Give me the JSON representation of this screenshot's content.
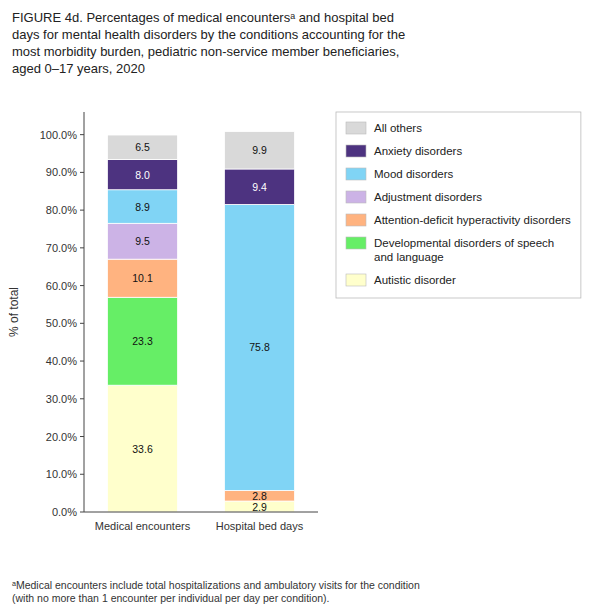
{
  "chart_data": {
    "type": "bar",
    "stacked": true,
    "data_labels": true,
    "grid": false,
    "legend": "right",
    "title": "FIGURE 4d. Percentages of medical encountersᵃ and hospital bed\ndays for mental health disorders by the conditions accounting for the\nmost morbidity burden, pediatric non-service member beneficiaries,\naged 0–17 years, 2020",
    "footnote": "ᵃMedical encounters include total hospitalizations and ambulatory visits for the condition\n(with no more than 1 encounter per individual per day per condition).",
    "y_label": "% of total",
    "categories": [
      "Medical encounters",
      "Hospital bed days"
    ],
    "series": [
      {
        "name": "Autistic disorder",
        "color": "#ffffcc",
        "values": [
          33.6,
          2.9
        ]
      },
      {
        "name": "Developmental disorders of speech and language",
        "color": "#66ee66",
        "values": [
          23.3,
          0.0
        ]
      },
      {
        "name": "Attention-deficit hyperactivity disorders",
        "color": "#ffb380",
        "values": [
          10.1,
          2.8
        ]
      },
      {
        "name": "Adjustment disorders",
        "color": "#ccb3e6",
        "values": [
          9.5,
          0.0
        ]
      },
      {
        "name": "Mood disorders",
        "color": "#80d4f5",
        "values": [
          8.9,
          75.8
        ]
      },
      {
        "name": "Anxiety disorders",
        "color": "#4d3380",
        "values": [
          8.0,
          9.4
        ],
        "value_labels": [
          "8.0",
          "9.4"
        ]
      },
      {
        "name": "All others",
        "color": "#d9d9d9",
        "values": [
          6.5,
          9.9
        ]
      }
    ],
    "ylim": [
      0,
      106
    ],
    "yticks": [
      {
        "value": 0,
        "label": "0.0%"
      },
      {
        "value": 10,
        "label": "10.0%"
      },
      {
        "value": 20,
        "label": "20.0%"
      },
      {
        "value": 30,
        "label": "30.0%"
      },
      {
        "value": 40,
        "label": "40.0%"
      },
      {
        "value": 50,
        "label": "50.0%"
      },
      {
        "value": 60,
        "label": "60.0%"
      },
      {
        "value": 70,
        "label": "70.0%"
      },
      {
        "value": 80,
        "label": "80.0%"
      },
      {
        "value": 90,
        "label": "90.0%"
      },
      {
        "value": 100,
        "label": "100.0%"
      }
    ]
  }
}
